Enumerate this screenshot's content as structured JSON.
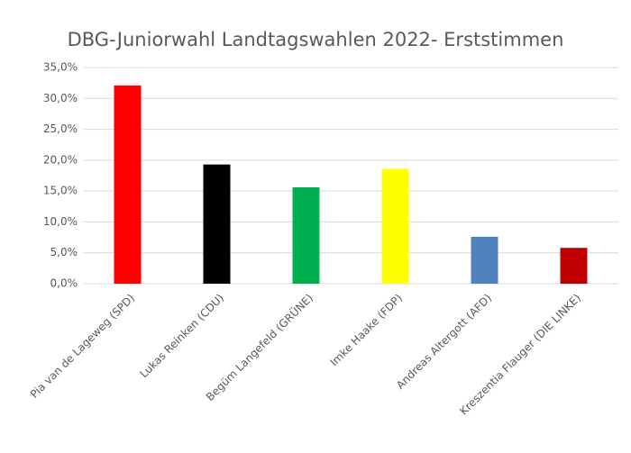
{
  "chart_data": {
    "type": "bar",
    "title": "DBG-Juniorwahl Landtagswahlen 2022- Erststimmen",
    "categories": [
      "Pia van de Lageweg (SPD)",
      "Lukas Reinken (CDU)",
      "Begüm Langefeld (GRÜNE)",
      "Imke Haake (FDP)",
      "Andreas Altergott (AFD)",
      "Kreszentia Flauger (DIE LINKE)"
    ],
    "values": [
      32.1,
      19.3,
      15.6,
      18.6,
      7.6,
      5.8
    ],
    "colors": [
      "#ff0000",
      "#000000",
      "#00b050",
      "#ffff00",
      "#4f81bd",
      "#c00000"
    ],
    "ylim": [
      0,
      35
    ],
    "yticks": [
      {
        "value": 0,
        "label": "0,0%"
      },
      {
        "value": 5,
        "label": "5,0%"
      },
      {
        "value": 10,
        "label": "10,0%"
      },
      {
        "value": 15,
        "label": "15,0%"
      },
      {
        "value": 20,
        "label": "20,0%"
      },
      {
        "value": 25,
        "label": "25,0%"
      },
      {
        "value": 30,
        "label": "30,0%"
      },
      {
        "value": 35,
        "label": "35,0%"
      }
    ],
    "grid": true
  }
}
